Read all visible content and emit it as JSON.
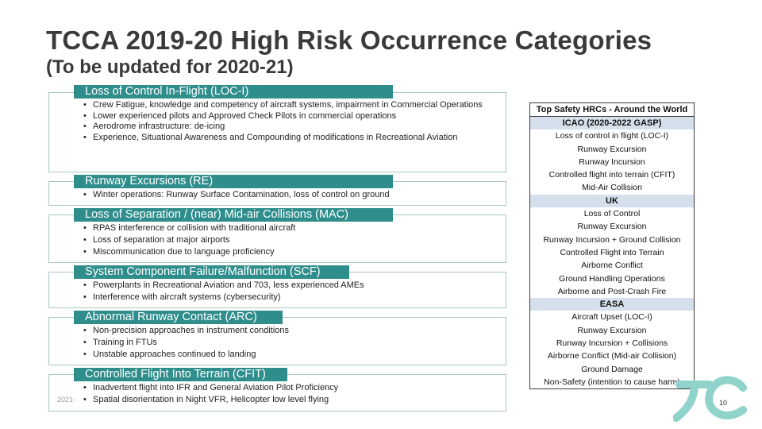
{
  "slide": {
    "title": "TCCA 2019-20 High Risk Occurrence Categories",
    "subtitle": "(To be updated for 2020-21)",
    "footer_date": "2021-",
    "page_number": "10"
  },
  "categories": [
    {
      "header": "Loss of Control In-Flight (LOC-I)",
      "bullets": [
        "Crew Fatigue, knowledge and competency of aircraft systems, impairment in Commercial Operations",
        "Lower experienced pilots and Approved Check Pilots in commercial operations",
        "Aerodrome infrastructure: de-icing",
        "Experience, Situational Awareness and Compounding of modifications in Recreational Aviation"
      ]
    },
    {
      "header": "Runway Excursions (RE)",
      "bullets": [
        "Winter operations: Runway Surface Contamination, loss of control on ground"
      ]
    },
    {
      "header": "Loss of Separation / (near) Mid-air Collisions (MAC)",
      "bullets": [
        "RPAS interference or collision with traditional aircraft",
        "Loss of separation at major airports",
        "Miscommunication due to language proficiency"
      ]
    },
    {
      "header": "System Component Failure/Malfunction (SCF)",
      "bullets": [
        "Powerplants in Recreational Aviation and 703, less experienced AMEs",
        "Interference with aircraft systems (cybersecurity)"
      ]
    },
    {
      "header": "Abnormal Runway Contact (ARC)",
      "bullets": [
        "Non-precision approaches in instrument conditions",
        "Training in FTUs",
        "Unstable approaches continued to landing"
      ]
    },
    {
      "header": "Controlled Flight Into Terrain (CFIT)",
      "bullets": [
        "Inadvertent flight into IFR and General Aviation Pilot Proficiency",
        "Spatial disorientation in Night VFR, Helicopter low level flying"
      ]
    }
  ],
  "hrc_table": {
    "header": "Top Safety HRCs - Around the World",
    "sections": [
      {
        "name": "ICAO (2020-2022 GASP)",
        "items": [
          "Loss of control in flight (LOC-I)",
          "Runway Excursion",
          "Runway Incursion",
          "Controlled flight into terrain (CFIT)",
          "Mid-Air Collision"
        ]
      },
      {
        "name": "UK",
        "items": [
          "Loss of Control",
          "Runway Excursion",
          "Runway Incursion + Ground Collision",
          "Controlled Flight into Terrain",
          "Airborne Conflict",
          "Ground Handling Operations",
          "Airborne and Post-Crash Fire"
        ]
      },
      {
        "name": "EASA",
        "items": [
          "Aircraft Upset (LOC-I)",
          "Runway Excursion",
          "Runway Incursion + Collisions",
          "Airborne Conflict (Mid-air Collision)",
          "Ground Damage",
          "Non-Safety (intention to cause harm)"
        ]
      }
    ]
  },
  "colors": {
    "header_teal": "#2f8e8c",
    "box_border": "#a9c6c5",
    "section_fill": "#d6e0ec",
    "logo_teal": "#8fd3cb"
  }
}
